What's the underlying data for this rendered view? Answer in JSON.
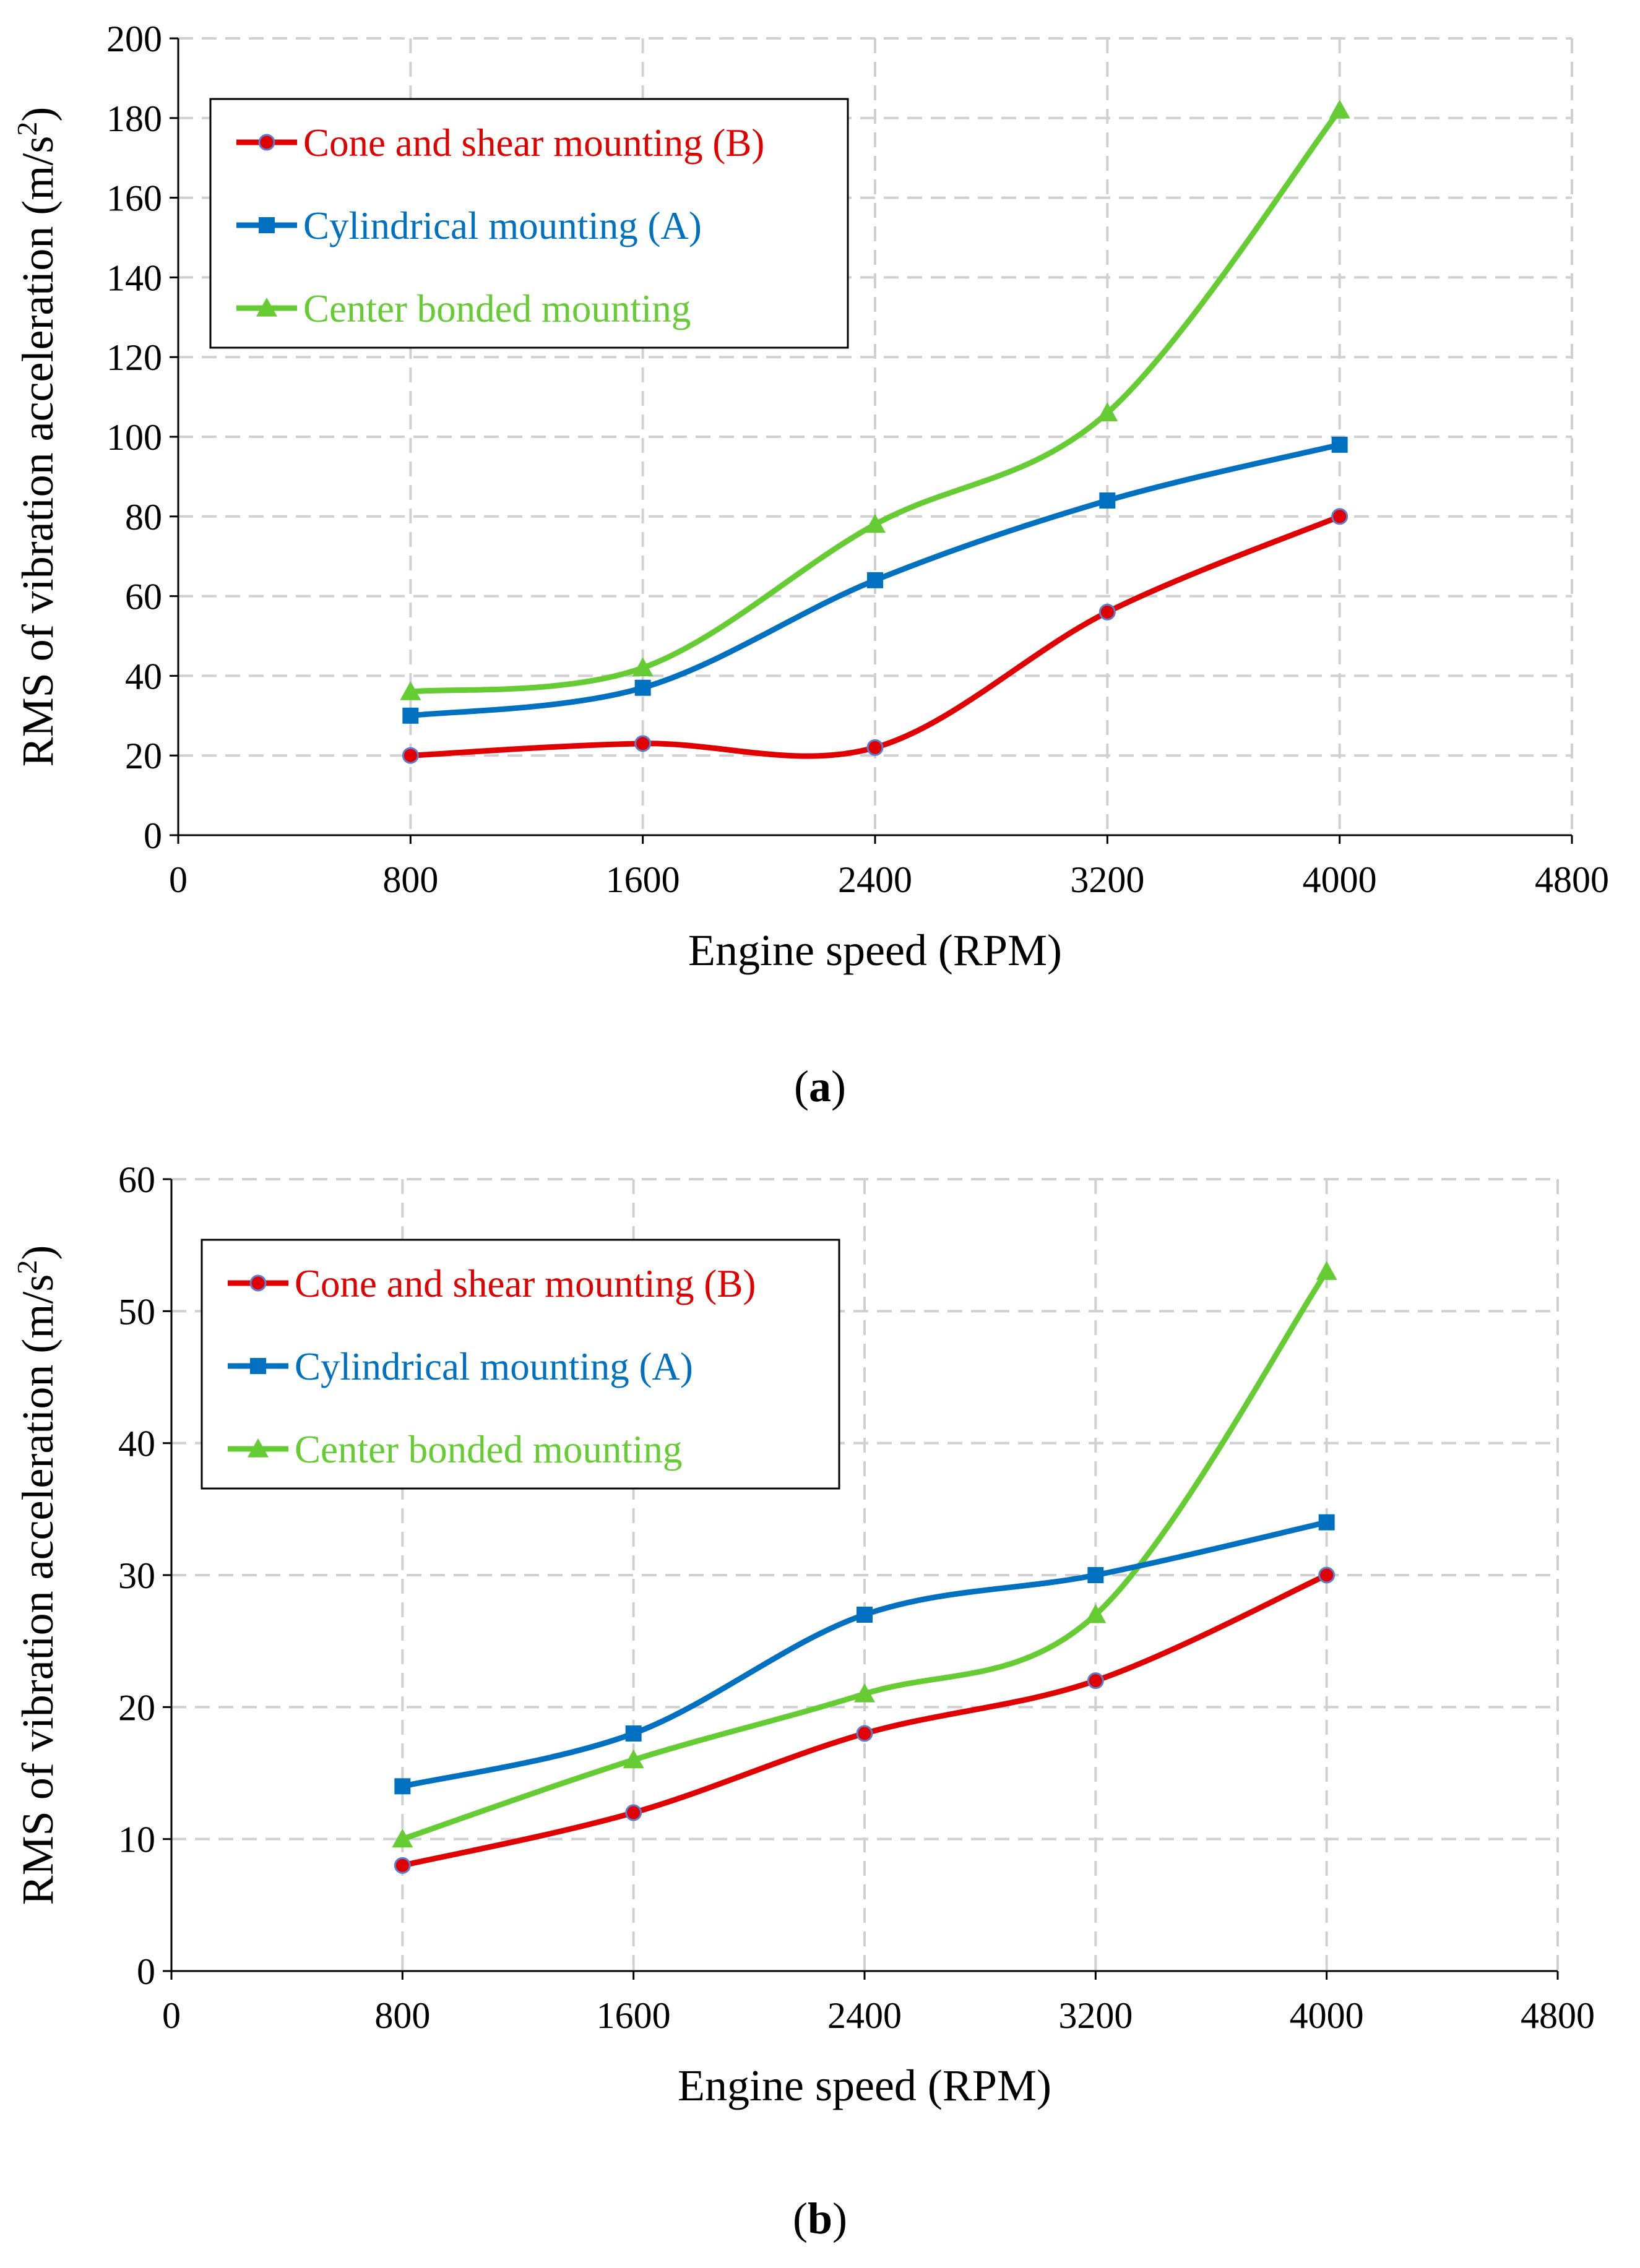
{
  "chart_data": [
    {
      "type": "line",
      "x": [
        800,
        1600,
        2400,
        3200,
        4000
      ],
      "series": [
        {
          "name": "Cone and shear mounting (B)",
          "values": [
            20,
            23,
            22,
            56,
            80
          ],
          "color": "#e00000",
          "marker": "circle"
        },
        {
          "name": "Cylindrical mounting (A)",
          "values": [
            30,
            37,
            64,
            84,
            98
          ],
          "color": "#0070c0",
          "marker": "square"
        },
        {
          "name": "Center bonded mounting",
          "values": [
            36,
            42,
            78,
            106,
            182
          ],
          "color": "#66cc33",
          "marker": "triangle"
        }
      ],
      "xlim": [
        0,
        4800
      ],
      "ylim": [
        0,
        200
      ],
      "xticks": [
        "0",
        "800",
        "1600",
        "2400",
        "3200",
        "4000",
        "4800"
      ],
      "yticks": [
        "0",
        "20",
        "40",
        "60",
        "80",
        "100",
        "120",
        "140",
        "160",
        "180",
        "200"
      ],
      "xlabel": "Engine speed (RPM)",
      "ylabel_prefix": "RMS of vibration acceleration (m/s",
      "ylabel_superscript": "2",
      "ylabel_suffix": ")",
      "caption": "(a)",
      "grid": true,
      "legend_position": "top-left"
    },
    {
      "type": "line",
      "x": [
        800,
        1600,
        2400,
        3200,
        4000
      ],
      "series": [
        {
          "name": "Cone and shear mounting (B)",
          "values": [
            8,
            12,
            18,
            22,
            30
          ],
          "color": "#e00000",
          "marker": "circle"
        },
        {
          "name": "Cylindrical mounting (A)",
          "values": [
            14,
            18,
            27,
            30,
            34
          ],
          "color": "#0070c0",
          "marker": "square"
        },
        {
          "name": "Center bonded mounting",
          "values": [
            10,
            16,
            21,
            27,
            53
          ],
          "color": "#66cc33",
          "marker": "triangle"
        }
      ],
      "xlim": [
        0,
        4800
      ],
      "ylim": [
        0,
        60
      ],
      "xticks": [
        "0",
        "800",
        "1600",
        "2400",
        "3200",
        "4000",
        "4800"
      ],
      "yticks": [
        "0",
        "10",
        "20",
        "30",
        "40",
        "50",
        "60"
      ],
      "xlabel": "Engine speed (RPM)",
      "ylabel_prefix": "RMS of vibration acceleration (m/s",
      "ylabel_superscript": "2",
      "ylabel_suffix": ")",
      "caption": "(b)",
      "grid": true,
      "legend_position": "top-left"
    }
  ]
}
